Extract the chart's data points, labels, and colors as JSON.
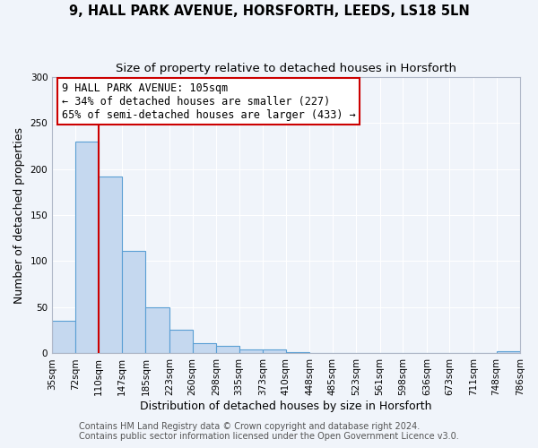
{
  "title": "9, HALL PARK AVENUE, HORSFORTH, LEEDS, LS18 5LN",
  "subtitle": "Size of property relative to detached houses in Horsforth",
  "xlabel": "Distribution of detached houses by size in Horsforth",
  "ylabel": "Number of detached properties",
  "bin_edges": [
    35,
    72,
    110,
    147,
    185,
    223,
    260,
    298,
    335,
    373,
    410,
    448,
    485,
    523,
    561,
    598,
    636,
    673,
    711,
    748,
    786
  ],
  "bar_heights": [
    35,
    230,
    192,
    111,
    50,
    26,
    11,
    8,
    4,
    4,
    1,
    0,
    0,
    0,
    0,
    0,
    0,
    0,
    0,
    2
  ],
  "bar_color": "#c5d8ef",
  "bar_edge_color": "#5a9fd4",
  "property_line_x": 110,
  "property_line_color": "#cc0000",
  "ylim": [
    0,
    300
  ],
  "yticks": [
    0,
    50,
    100,
    150,
    200,
    250,
    300
  ],
  "xtick_labels": [
    "35sqm",
    "72sqm",
    "110sqm",
    "147sqm",
    "185sqm",
    "223sqm",
    "260sqm",
    "298sqm",
    "335sqm",
    "373sqm",
    "410sqm",
    "448sqm",
    "485sqm",
    "523sqm",
    "561sqm",
    "598sqm",
    "636sqm",
    "673sqm",
    "711sqm",
    "748sqm",
    "786sqm"
  ],
  "annotation_line1": "9 HALL PARK AVENUE: 105sqm",
  "annotation_line2": "← 34% of detached houses are smaller (227)",
  "annotation_line3": "65% of semi-detached houses are larger (433) →",
  "annotation_box_color": "#ffffff",
  "annotation_box_edge_color": "#cc0000",
  "footer_line1": "Contains HM Land Registry data © Crown copyright and database right 2024.",
  "footer_line2": "Contains public sector information licensed under the Open Government Licence v3.0.",
  "bg_color": "#f0f4fa",
  "grid_color": "#ffffff",
  "title_fontsize": 10.5,
  "subtitle_fontsize": 9.5,
  "ylabel_fontsize": 9,
  "xlabel_fontsize": 9,
  "tick_fontsize": 7.5,
  "footer_fontsize": 7,
  "ann_fontsize": 8.5
}
